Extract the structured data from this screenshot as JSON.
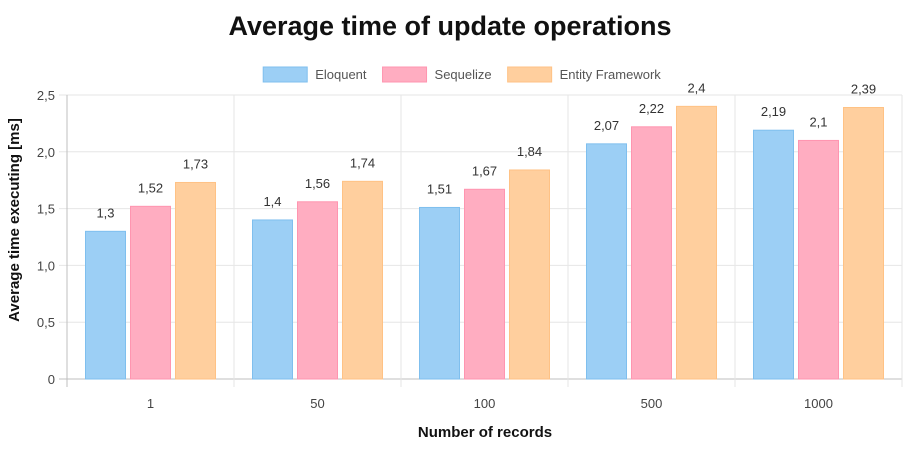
{
  "chart_data": {
    "type": "bar",
    "title": "Average time of update operations",
    "xlabel": "Number of records",
    "ylabel": "Average time executing [ms]",
    "categories": [
      "1",
      "50",
      "100",
      "500",
      "1000"
    ],
    "series": [
      {
        "name": "Eloquent",
        "values": [
          1.3,
          1.4,
          1.51,
          2.07,
          2.19
        ],
        "labels": [
          "1,3",
          "1,4",
          "1,51",
          "2,07",
          "2,19"
        ],
        "color": "#9ccff5",
        "border": "#7fbfee"
      },
      {
        "name": "Sequelize",
        "values": [
          1.52,
          1.56,
          1.67,
          2.22,
          2.1
        ],
        "labels": [
          "1,52",
          "1,56",
          "1,67",
          "2,22",
          "2,1"
        ],
        "color": "#ffadc1",
        "border": "#ff95b0"
      },
      {
        "name": "Entity Framework",
        "values": [
          1.73,
          1.74,
          1.84,
          2.4,
          2.39
        ],
        "labels": [
          "1,73",
          "1,74",
          "1,84",
          "2,4",
          "2,39"
        ],
        "color": "#ffcf9e",
        "border": "#ffc285"
      }
    ],
    "ylim": [
      0,
      2.5
    ],
    "yticks": [
      0,
      0.5,
      1.0,
      1.5,
      2.0,
      2.5
    ],
    "ytick_labels": [
      "0",
      "0,5",
      "1,0",
      "1,5",
      "2,0",
      "2,5"
    ],
    "legend_position": "top-center",
    "grid": true
  }
}
